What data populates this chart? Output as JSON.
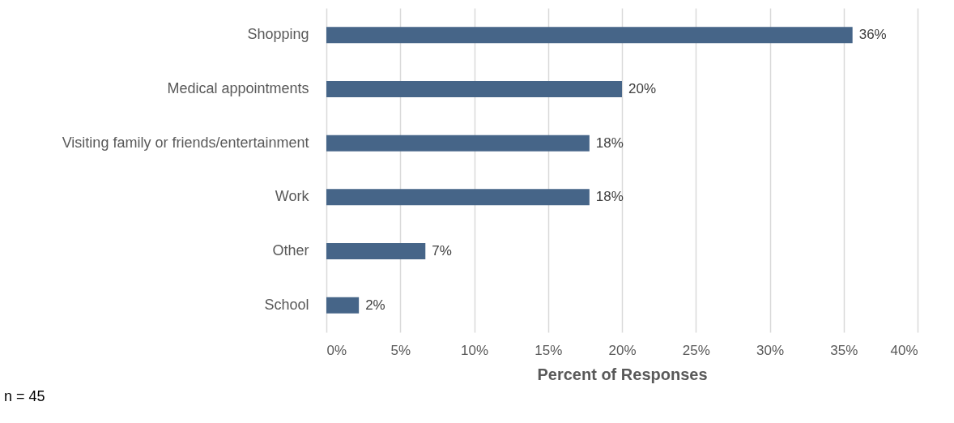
{
  "chart_data": {
    "type": "bar",
    "orientation": "horizontal",
    "categories": [
      "Shopping",
      "Medical appointments",
      "Visiting family or friends/entertainment",
      "Work",
      "Other",
      "School"
    ],
    "values": [
      35.6,
      20,
      17.8,
      17.8,
      6.7,
      2.2
    ],
    "value_labels": [
      "36%",
      "20%",
      "18%",
      "18%",
      "7%",
      "2%"
    ],
    "color": "#466588",
    "xlabel": "Percent of Responses",
    "xlim": [
      0,
      40
    ],
    "xticks": [
      {
        "value": 0,
        "label": "0%"
      },
      {
        "value": 5,
        "label": "5%"
      },
      {
        "value": 10,
        "label": "10%"
      },
      {
        "value": 15,
        "label": "15%"
      },
      {
        "value": 20,
        "label": "20%"
      },
      {
        "value": 25,
        "label": "25%"
      },
      {
        "value": 30,
        "label": "30%"
      },
      {
        "value": 35,
        "label": "35%"
      },
      {
        "value": 40,
        "label": "40%"
      }
    ],
    "grid": "x",
    "annotations": [
      "n = 45"
    ]
  }
}
